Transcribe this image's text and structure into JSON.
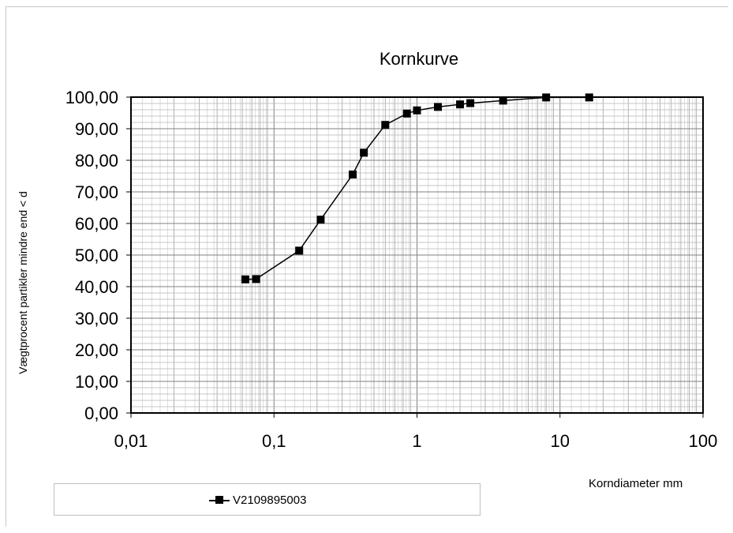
{
  "chart_data": {
    "type": "scatter",
    "title": "Kornkurve",
    "xlabel": "Korndiameter mm",
    "ylabel": "Vægtprocent partikler mindre end < d",
    "x_scale": "log",
    "xlim": [
      0.01,
      100
    ],
    "ylim": [
      0,
      100
    ],
    "x_ticks": [
      0.01,
      0.1,
      1,
      10,
      100
    ],
    "x_tick_labels": [
      "0,01",
      "0,1",
      "1",
      "10",
      "100"
    ],
    "y_ticks": [
      0,
      10,
      20,
      30,
      40,
      50,
      60,
      70,
      80,
      90,
      100
    ],
    "y_tick_labels": [
      "0,00",
      "10,00",
      "20,00",
      "30,00",
      "40,00",
      "50,00",
      "60,00",
      "70,00",
      "80,00",
      "90,00",
      "100,00"
    ],
    "grid": true,
    "legend_position": "bottom",
    "series": [
      {
        "name": "V2109895003",
        "color": "#000000",
        "marker": "square",
        "x": [
          0.063,
          0.075,
          0.15,
          0.212,
          0.355,
          0.425,
          0.6,
          0.85,
          1,
          1.4,
          2,
          2.36,
          4,
          8,
          16
        ],
        "y": [
          42.3,
          42.4,
          51.4,
          61.2,
          75.5,
          82.4,
          91.2,
          94.8,
          95.8,
          96.9,
          97.7,
          98.1,
          98.9,
          99.9,
          99.9
        ]
      }
    ]
  }
}
